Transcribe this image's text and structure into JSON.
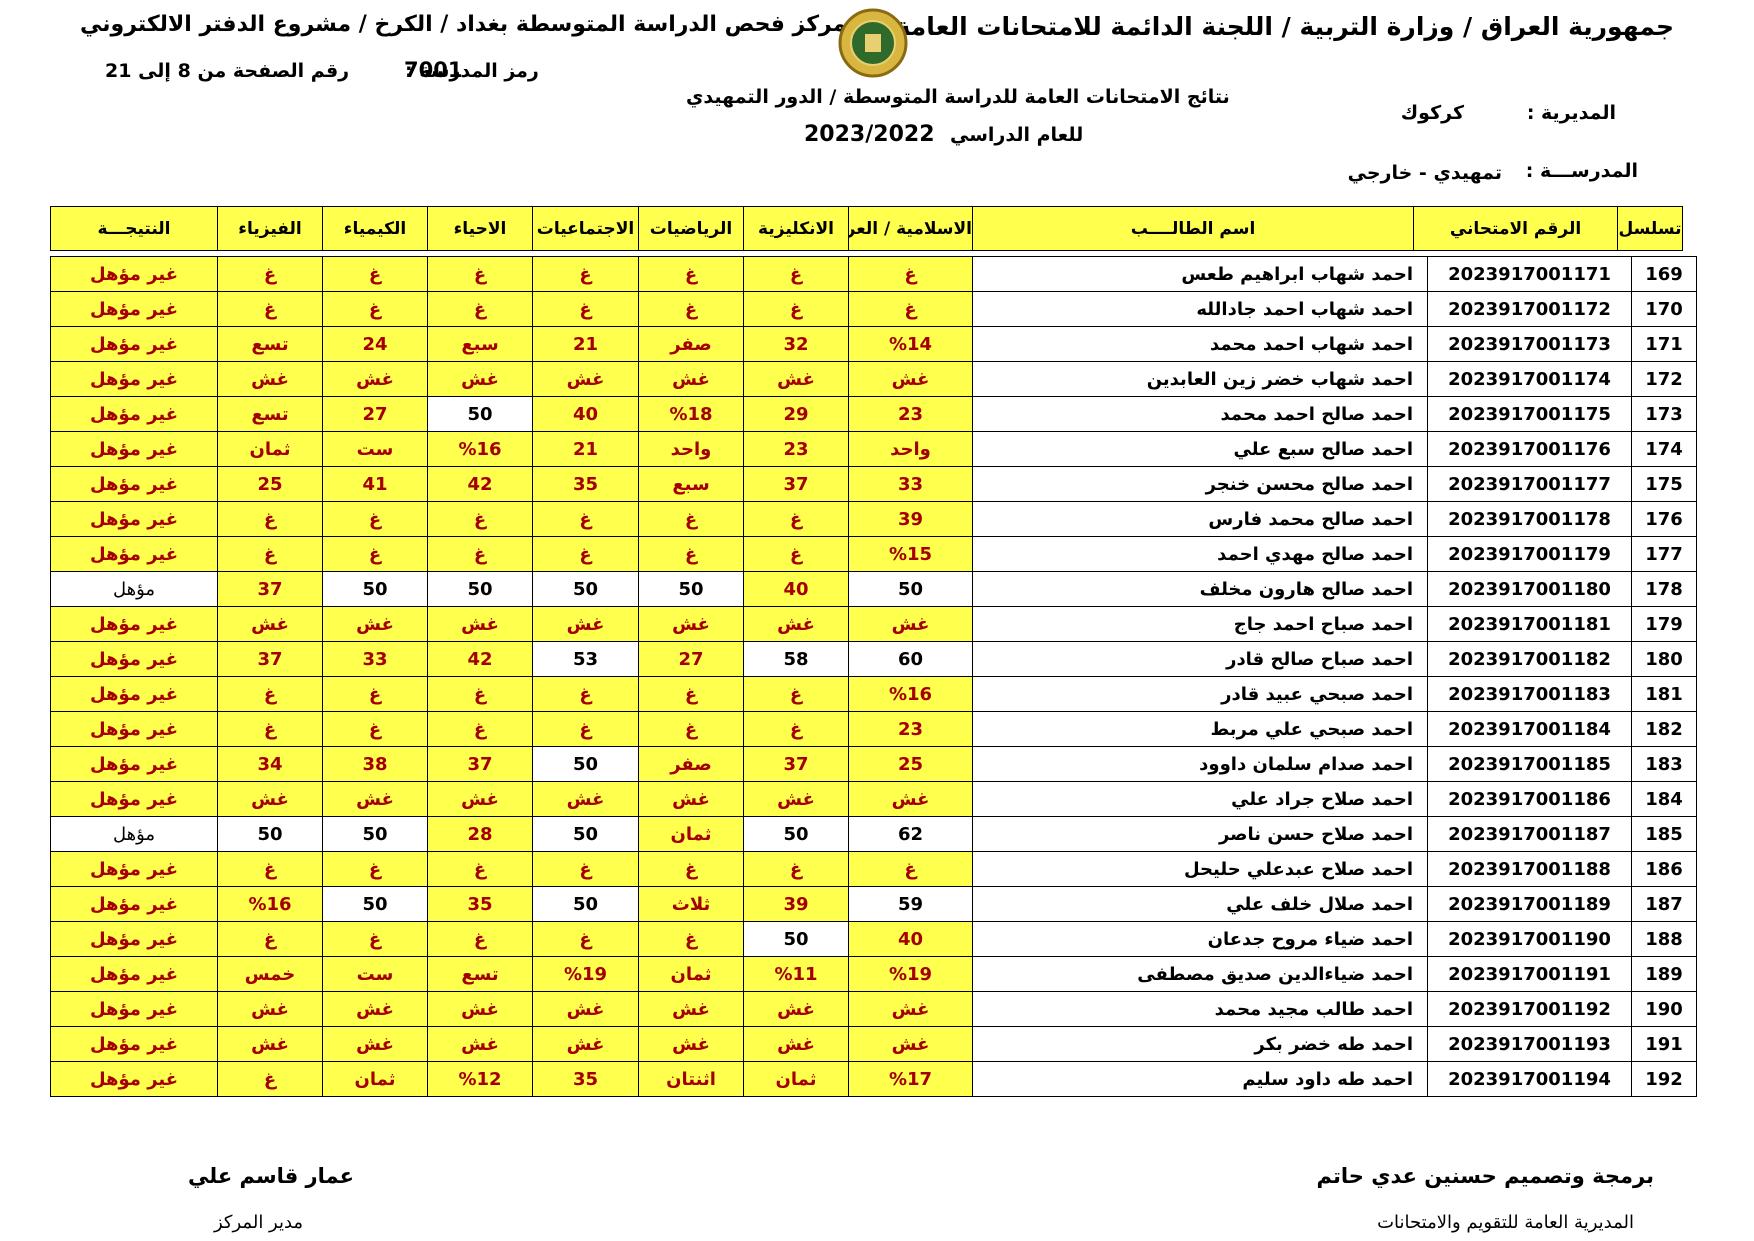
{
  "header": {
    "ministry": "جمهورية العراق / وزارة التربية / اللجنة الدائمة للامتحانات العامة",
    "center": "مركز فحص الدراسة المتوسطة بغداد / الكرخ / مشروع الدفتر الالكتروني",
    "school_code_label": "رمز المدرسة :",
    "school_code": "7001",
    "page_label": "رقم الصفحة من",
    "page_from": "8",
    "page_to_label": "إلى",
    "page_to": "21",
    "results_title": "نتائج الامتحانات العامة للدراسة المتوسطة / الدور التمهيدي",
    "year_label": "للعام الدراسي",
    "year": "2023/2022",
    "directorate_label": "المديرية :",
    "directorate": "كركوك",
    "school_label": "المدرســـة :",
    "school": "تمهيدي - خارجي"
  },
  "table": {
    "headers": [
      "تسلسل",
      "الرقم الامتحاني",
      "اسم الطالــــب",
      "الاسلامية / العربية",
      "الانكليزية",
      "الرياضيات",
      "الاجتماعيات",
      "الاحياء",
      "الكيمياء",
      "الفيزياء",
      "النتيجـــة"
    ],
    "rows": [
      [
        "169",
        "2023917001171",
        "احمد شهاب ابراهيم طعس",
        "غ",
        "غ",
        "غ",
        "غ",
        "غ",
        "غ",
        "غ",
        "غير مؤهل"
      ],
      [
        "170",
        "2023917001172",
        "احمد شهاب احمد جادالله",
        "غ",
        "غ",
        "غ",
        "غ",
        "غ",
        "غ",
        "غ",
        "غير مؤهل"
      ],
      [
        "171",
        "2023917001173",
        "احمد شهاب احمد محمد",
        "%14",
        "32",
        "صفر",
        "21",
        "سبع",
        "24",
        "تسع",
        "غير مؤهل"
      ],
      [
        "172",
        "2023917001174",
        "احمد شهاب خضر زين العابدين",
        "غش",
        "غش",
        "غش",
        "غش",
        "غش",
        "غش",
        "غش",
        "غير مؤهل"
      ],
      [
        "173",
        "2023917001175",
        "احمد صالح احمد محمد",
        "23",
        "29",
        "%18",
        "40",
        "50",
        "27",
        "تسع",
        "غير مؤهل"
      ],
      [
        "174",
        "2023917001176",
        "احمد صالح سبع علي",
        "واحد",
        "23",
        "واحد",
        "21",
        "%16",
        "ست",
        "ثمان",
        "غير مؤهل"
      ],
      [
        "175",
        "2023917001177",
        "احمد صالح محسن خنجر",
        "33",
        "37",
        "سبع",
        "35",
        "42",
        "41",
        "25",
        "غير مؤهل"
      ],
      [
        "176",
        "2023917001178",
        "احمد صالح محمد فارس",
        "39",
        "غ",
        "غ",
        "غ",
        "غ",
        "غ",
        "غ",
        "غير مؤهل"
      ],
      [
        "177",
        "2023917001179",
        "احمد صالح مهدي احمد",
        "%15",
        "غ",
        "غ",
        "غ",
        "غ",
        "غ",
        "غ",
        "غير مؤهل"
      ],
      [
        "178",
        "2023917001180",
        "احمد صالح هارون مخلف",
        "50",
        "40",
        "50",
        "50",
        "50",
        "50",
        "37",
        "مؤهل"
      ],
      [
        "179",
        "2023917001181",
        "احمد صباح احمد جاج",
        "غش",
        "غش",
        "غش",
        "غش",
        "غش",
        "غش",
        "غش",
        "غير مؤهل"
      ],
      [
        "180",
        "2023917001182",
        "احمد صباح صالح قادر",
        "60",
        "58",
        "27",
        "53",
        "42",
        "33",
        "37",
        "غير مؤهل"
      ],
      [
        "181",
        "2023917001183",
        "احمد صبحي عبيد قادر",
        "%16",
        "غ",
        "غ",
        "غ",
        "غ",
        "غ",
        "غ",
        "غير مؤهل"
      ],
      [
        "182",
        "2023917001184",
        "احمد صبحي علي مربط",
        "23",
        "غ",
        "غ",
        "غ",
        "غ",
        "غ",
        "غ",
        "غير مؤهل"
      ],
      [
        "183",
        "2023917001185",
        "احمد صدام سلمان داوود",
        "25",
        "37",
        "صفر",
        "50",
        "37",
        "38",
        "34",
        "غير مؤهل"
      ],
      [
        "184",
        "2023917001186",
        "احمد صلاح جراد علي",
        "غش",
        "غش",
        "غش",
        "غش",
        "غش",
        "غش",
        "غش",
        "غير مؤهل"
      ],
      [
        "185",
        "2023917001187",
        "احمد صلاح حسن ناصر",
        "62",
        "50",
        "ثمان",
        "50",
        "28",
        "50",
        "50",
        "مؤهل"
      ],
      [
        "186",
        "2023917001188",
        "احمد صلاح عبدعلي حليحل",
        "غ",
        "غ",
        "غ",
        "غ",
        "غ",
        "غ",
        "غ",
        "غير مؤهل"
      ],
      [
        "187",
        "2023917001189",
        "احمد صلال خلف علي",
        "59",
        "39",
        "ثلاث",
        "50",
        "35",
        "50",
        "%16",
        "غير مؤهل"
      ],
      [
        "188",
        "2023917001190",
        "احمد ضياء مروح جدعان",
        "40",
        "50",
        "غ",
        "غ",
        "غ",
        "غ",
        "غ",
        "غير مؤهل"
      ],
      [
        "189",
        "2023917001191",
        "احمد ضياءالدين صديق مصطفى",
        "%19",
        "%11",
        "ثمان",
        "%19",
        "تسع",
        "ست",
        "خمس",
        "غير مؤهل"
      ],
      [
        "190",
        "2023917001192",
        "احمد طالب مجيد محمد",
        "غش",
        "غش",
        "غش",
        "غش",
        "غش",
        "غش",
        "غش",
        "غير مؤهل"
      ],
      [
        "191",
        "2023917001193",
        "احمد طه خضر بكر",
        "غش",
        "غش",
        "غش",
        "غش",
        "غش",
        "غش",
        "غش",
        "غير مؤهل"
      ],
      [
        "192",
        "2023917001194",
        "احمد طه داود سليم",
        "%17",
        "ثمان",
        "اثنتان",
        "35",
        "%12",
        "ثمان",
        "غ",
        "غير مؤهل"
      ]
    ]
  },
  "footer": {
    "designer": "برمجة وتصميم حسنين عدي حاتم",
    "directorate": "المديرية العامة للتقويم والامتحانات",
    "manager_name": "عمار قاسم علي",
    "manager_title": "مدير المركز"
  }
}
